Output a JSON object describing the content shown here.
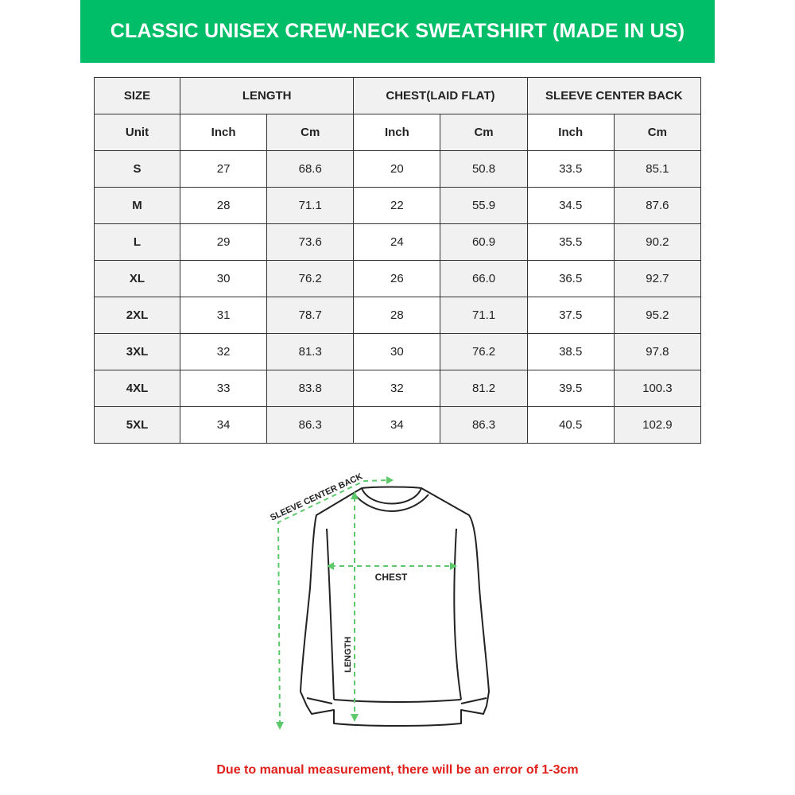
{
  "title": "CLASSIC UNISEX CREW-NECK SWEATSHIRT (MADE IN US)",
  "colors": {
    "banner": "#00bd68",
    "arrows": "#5cc96b",
    "note": "#e0201b"
  },
  "table": {
    "headers": [
      "SIZE",
      "LENGTH",
      "CHEST(LAID FLAT)",
      "SLEEVE CENTER BACK"
    ],
    "units": [
      "Unit",
      "Inch",
      "Cm",
      "Inch",
      "Cm",
      "Inch",
      "Cm"
    ],
    "rows": [
      [
        "S",
        "27",
        "68.6",
        "20",
        "50.8",
        "33.5",
        "85.1"
      ],
      [
        "M",
        "28",
        "71.1",
        "22",
        "55.9",
        "34.5",
        "87.6"
      ],
      [
        "L",
        "29",
        "73.6",
        "24",
        "60.9",
        "35.5",
        "90.2"
      ],
      [
        "XL",
        "30",
        "76.2",
        "26",
        "66.0",
        "36.5",
        "92.7"
      ],
      [
        "2XL",
        "31",
        "78.7",
        "28",
        "71.1",
        "37.5",
        "95.2"
      ],
      [
        "3XL",
        "32",
        "81.3",
        "30",
        "76.2",
        "38.5",
        "97.8"
      ],
      [
        "4XL",
        "33",
        "83.8",
        "32",
        "81.2",
        "39.5",
        "100.3"
      ],
      [
        "5XL",
        "34",
        "86.3",
        "34",
        "86.3",
        "40.5",
        "102.9"
      ]
    ]
  },
  "diagram": {
    "sleeve_label": "SLEEVE CENTER BACK",
    "chest_label": "CHEST",
    "length_label": "LENGTH"
  },
  "note": "Due to manual measurement, there will be an error of 1-3cm"
}
